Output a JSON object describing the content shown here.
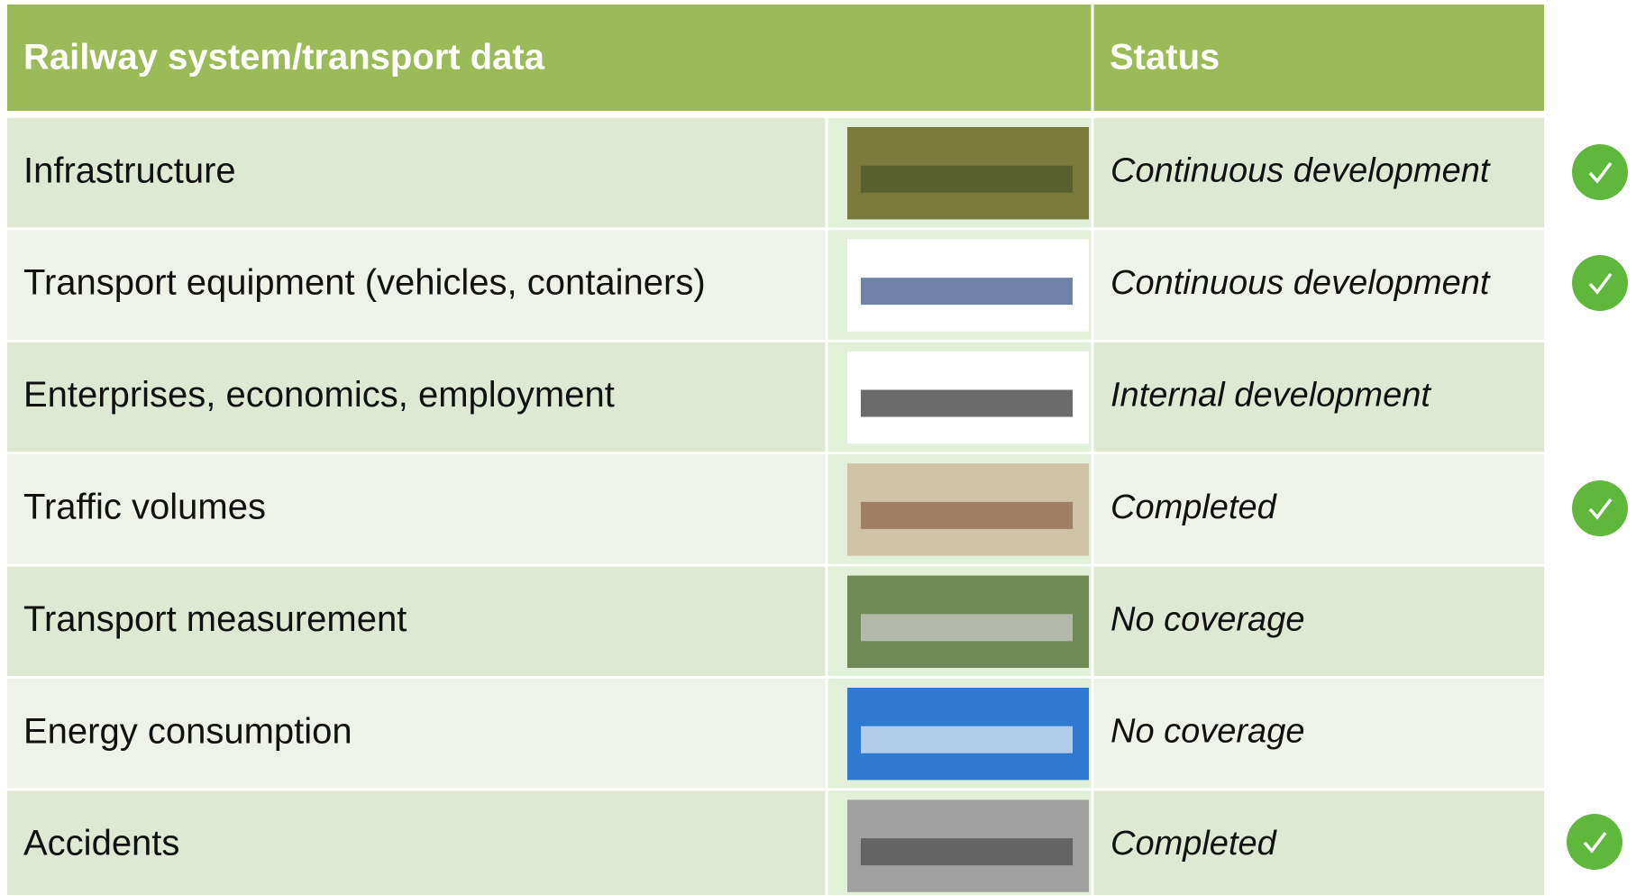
{
  "header": {
    "title": "Railway system/transport data",
    "status": "Status"
  },
  "rows": [
    {
      "label": "Infrastructure",
      "status": "Continuous development"
    },
    {
      "label": "Transport equipment (vehicles, containers)",
      "status": "Continuous development"
    },
    {
      "label": "Enterprises, economics, employment",
      "status": "Internal development"
    },
    {
      "label": "Traffic volumes",
      "status": "Completed"
    },
    {
      "label": "Transport measurement",
      "status": "No coverage"
    },
    {
      "label": "Energy consumption",
      "status": "No coverage"
    },
    {
      "label": "Accidents",
      "status": "Completed"
    }
  ]
}
